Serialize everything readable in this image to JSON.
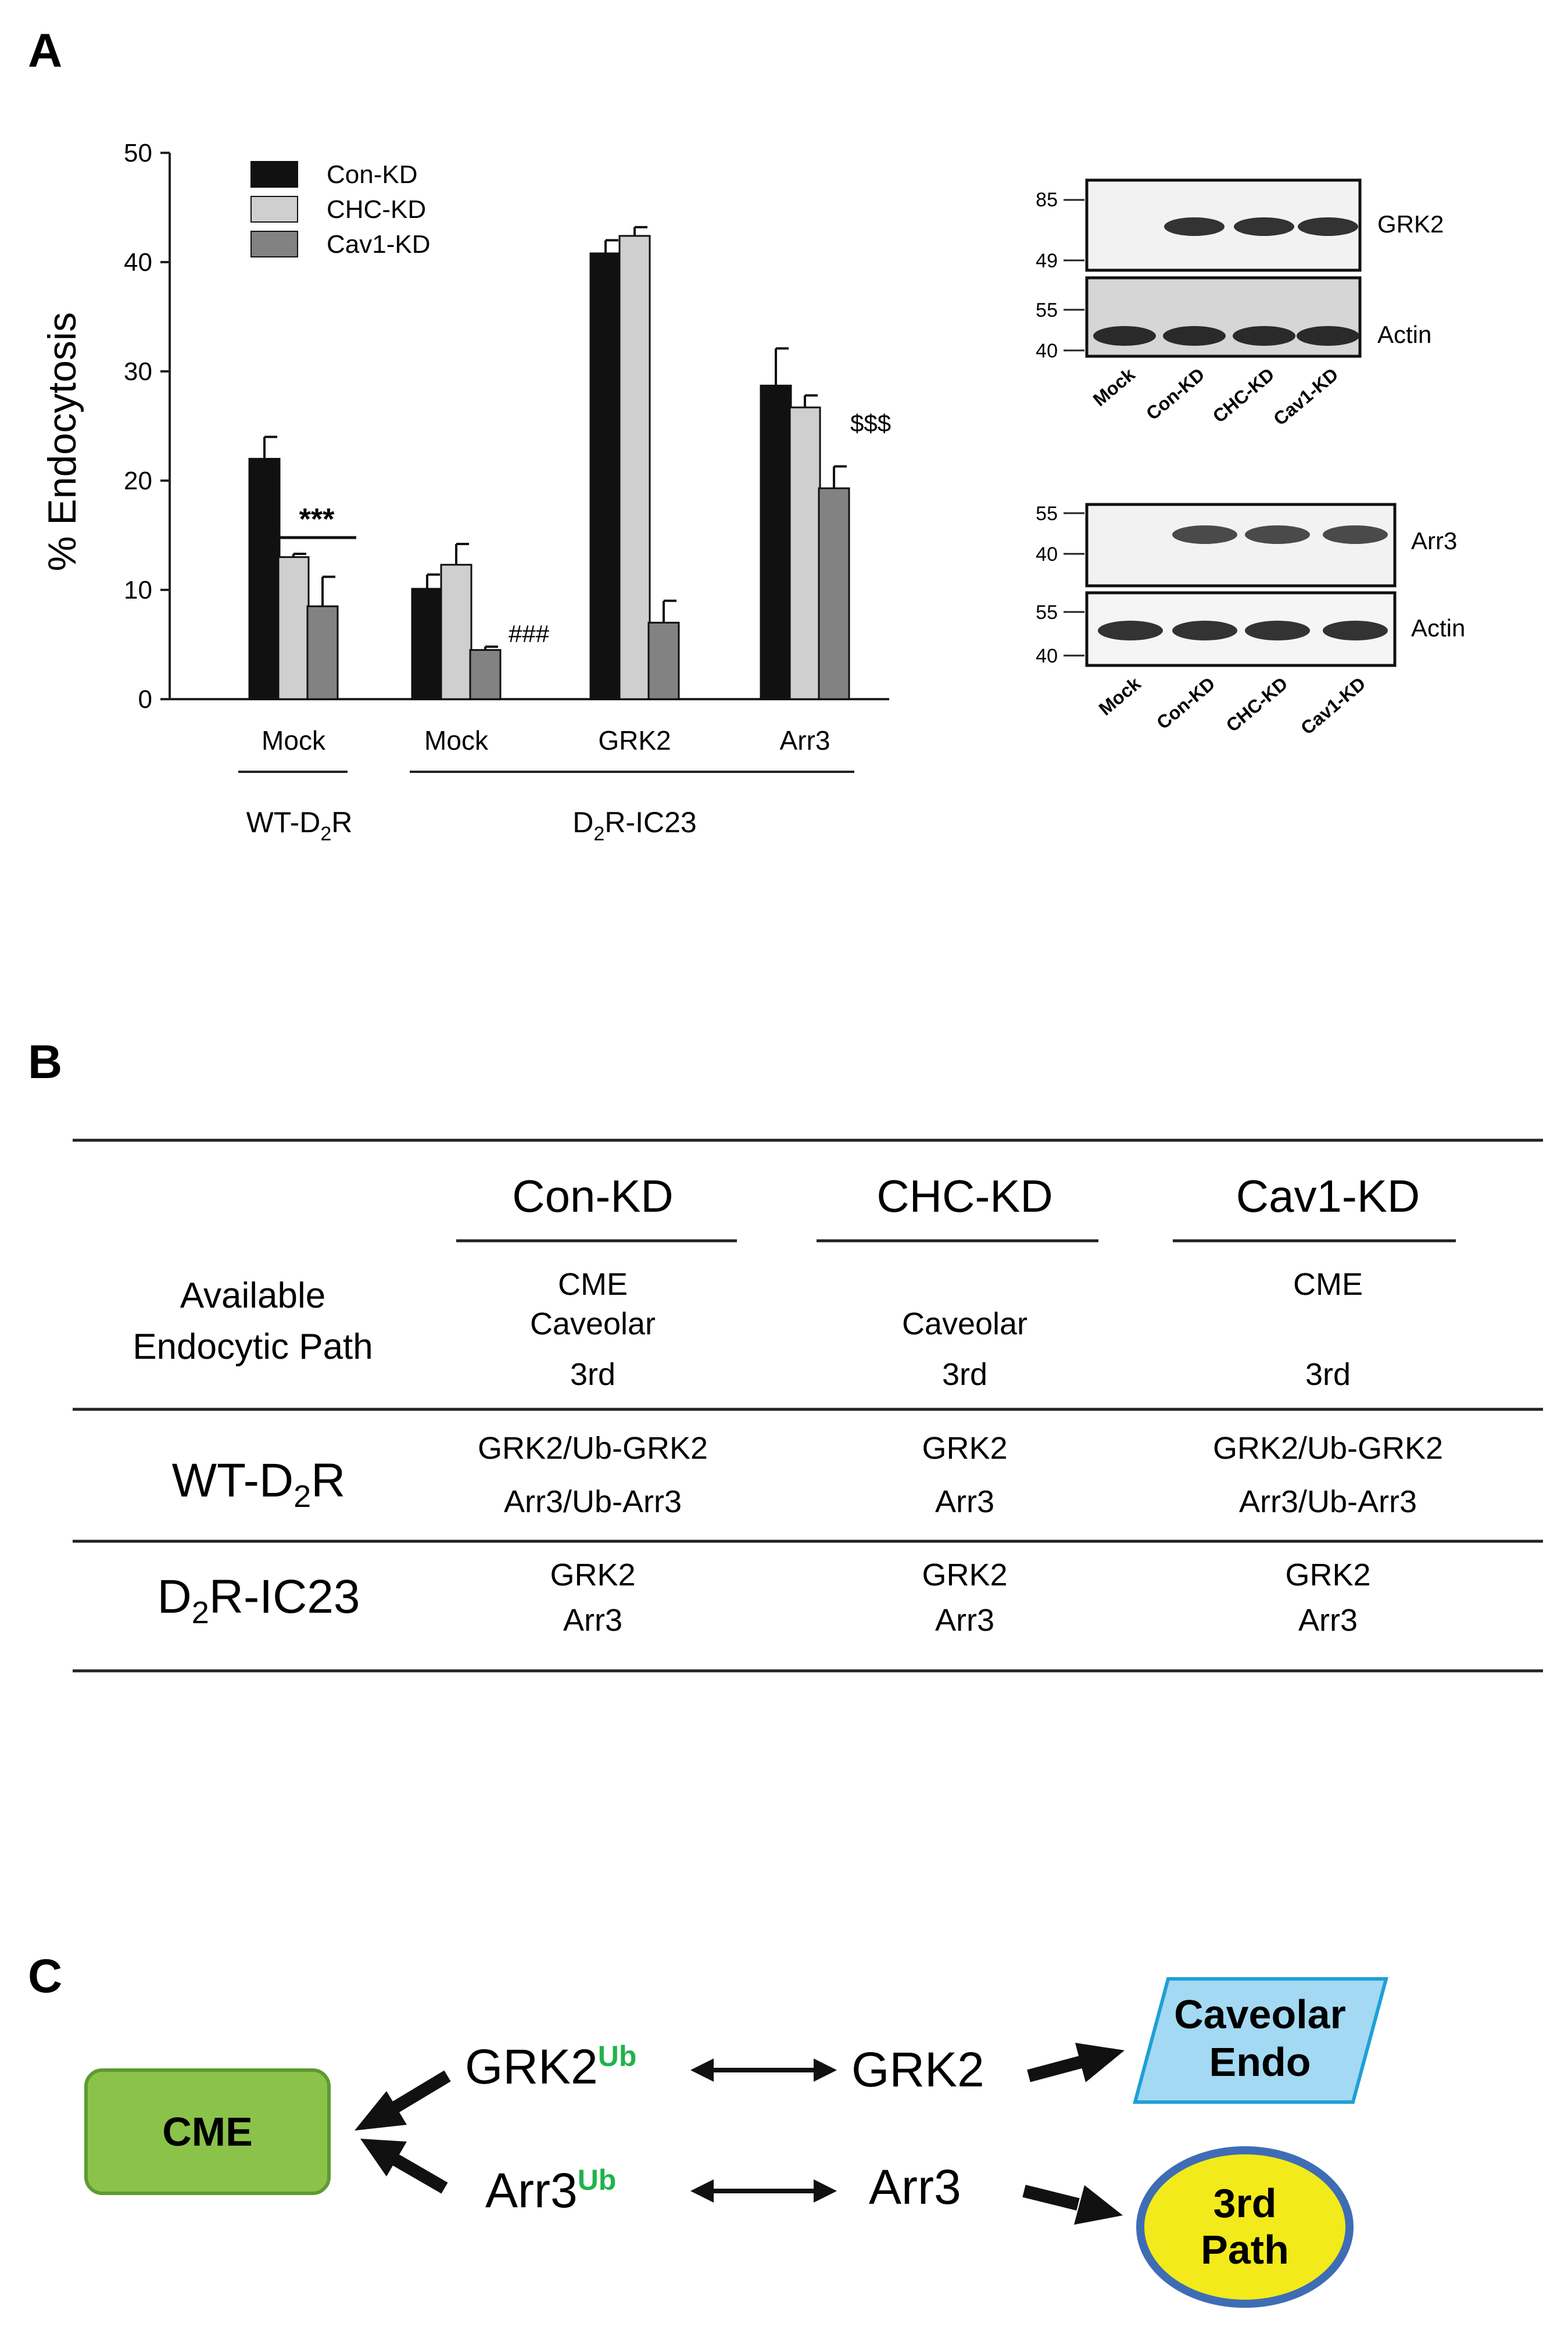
{
  "panels": {
    "a": "A",
    "b": "B",
    "c": "C"
  },
  "chart_data": {
    "type": "bar",
    "ylabel": "% Endocytosis",
    "ylim": [
      0,
      50
    ],
    "yticks": [
      "0",
      "10",
      "20",
      "30",
      "40",
      "50"
    ],
    "categories": [
      "Mock",
      "Mock",
      "GRK2",
      "Arr3"
    ],
    "groups": [
      {
        "label": "WT-D2R",
        "label_main": "WT-D",
        "label_sub": "2",
        "label_end": "R",
        "categories": [
          0
        ]
      },
      {
        "label": "D2R-IC23",
        "label_main": "D",
        "label_sub": "2",
        "label_end": "R-IC23",
        "categories": [
          1,
          2,
          3
        ]
      }
    ],
    "series": [
      {
        "name": "Con-KD",
        "color": "#111111",
        "values": [
          22.0,
          10.1,
          40.8,
          28.7
        ],
        "errors": [
          2.0,
          1.3,
          1.2,
          3.4
        ]
      },
      {
        "name": "CHC-KD",
        "color": "#cfcfcf",
        "values": [
          13.0,
          12.3,
          42.4,
          26.7
        ],
        "errors": [
          0.3,
          1.9,
          0.8,
          1.1
        ]
      },
      {
        "name": "Cav1-KD",
        "color": "#828282",
        "values": [
          8.5,
          4.5,
          7.0,
          19.3
        ],
        "errors": [
          2.7,
          0.3,
          2.0,
          2.0
        ]
      }
    ],
    "annotations": [
      {
        "text": "***",
        "category": 0,
        "series": 1
      },
      {
        "text": "###",
        "category": 1,
        "series": 2
      },
      {
        "text": "$$$",
        "category": 3,
        "series": 2
      }
    ],
    "legend": "top-left"
  },
  "blots": [
    {
      "markers": [
        "85",
        "49",
        "55",
        "40"
      ],
      "top_label": "GRK2",
      "bottom_label": "Actin",
      "lanes": [
        "Mock",
        "Con-KD",
        "CHC-KD",
        "Cav1-KD"
      ]
    },
    {
      "markers": [
        "55",
        "40",
        "55",
        "40"
      ],
      "top_label": "Arr3",
      "bottom_label": "Actin",
      "lanes": [
        "Mock",
        "Con-KD",
        "CHC-KD",
        "Cav1-KD"
      ]
    }
  ],
  "table": {
    "columns": [
      "Con-KD",
      "CHC-KD",
      "Cav1-KD"
    ],
    "rows": [
      {
        "header_lines": [
          "Available",
          "Endocytic Path"
        ],
        "cells": [
          [
            "CME",
            "Caveolar",
            "3rd"
          ],
          [
            "",
            "Caveolar",
            "3rd"
          ],
          [
            "CME",
            "",
            "3rd"
          ]
        ]
      },
      {
        "header_main": "WT-D",
        "header_sub": "2",
        "header_end": "R",
        "cells": [
          [
            "GRK2/Ub-GRK2",
            "Arr3/Ub-Arr3"
          ],
          [
            "GRK2",
            "Arr3"
          ],
          [
            "GRK2/Ub-GRK2",
            "Arr3/Ub-Arr3"
          ]
        ]
      },
      {
        "header_main": "D",
        "header_sub": "2",
        "header_end": "R-IC23",
        "cells": [
          [
            "GRK2",
            "Arr3"
          ],
          [
            "GRK2",
            "Arr3"
          ],
          [
            "GRK2",
            "Arr3"
          ]
        ]
      }
    ]
  },
  "diagram": {
    "cme": "CME",
    "grk2_ub": "GRK2",
    "grk2_ub_sup": "Ub",
    "arr3_ub": "Arr3",
    "arr3_ub_sup": "Ub",
    "grk2": "GRK2",
    "arr3": "Arr3",
    "caveolar_lines": [
      "Caveolar",
      "Endo"
    ],
    "third_lines": [
      "3rd",
      "Path"
    ],
    "colors": {
      "cme": "#8bc34a",
      "cme_border": "#5e9a33",
      "caveolar": "#a3d9f2",
      "caveolar_border": "#1e9fd8",
      "third": "#f2ea1a",
      "third_border": "#3e6db5"
    }
  }
}
